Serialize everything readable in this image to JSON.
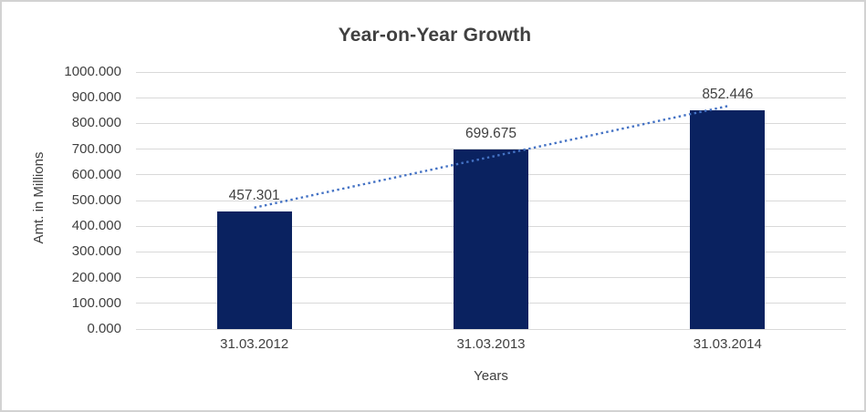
{
  "chart_data": {
    "type": "bar",
    "title": "Year-on-Year Growth",
    "xlabel": "Years",
    "ylabel": "Amt. in Millions",
    "categories": [
      "31.03.2012",
      "31.03.2013",
      "31.03.2014"
    ],
    "values": [
      457.301,
      699.675,
      852.446
    ],
    "value_labels": [
      "457.301",
      "699.675",
      "852.446"
    ],
    "ylim": [
      0,
      1000
    ],
    "y_ticks": [
      {
        "value": 0,
        "label": "0.000"
      },
      {
        "value": 100,
        "label": "100.000"
      },
      {
        "value": 200,
        "label": "200.000"
      },
      {
        "value": 300,
        "label": "300.000"
      },
      {
        "value": 400,
        "label": "400.000"
      },
      {
        "value": 500,
        "label": "500.000"
      },
      {
        "value": 600,
        "label": "600.000"
      },
      {
        "value": 700,
        "label": "700.000"
      },
      {
        "value": 800,
        "label": "800.000"
      },
      {
        "value": 900,
        "label": "900.000"
      },
      {
        "value": 1000,
        "label": "1000.000"
      }
    ],
    "grid": true,
    "legend_position": "none",
    "trendline": {
      "kind": "linear",
      "line_style": "dotted",
      "color": "#4472c4"
    },
    "colors": {
      "bar": "#0a2260",
      "gridline": "#d9d9d9",
      "text": "#404040"
    }
  }
}
